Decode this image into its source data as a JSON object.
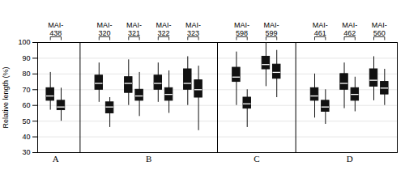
{
  "chart_data": {
    "type": "box",
    "ylabel": "Relative length (%)",
    "ylim": [
      30,
      100
    ],
    "yticks": [
      30,
      40,
      50,
      60,
      70,
      80,
      90,
      100
    ],
    "grid": true,
    "color": "#111111",
    "categories": [
      "MAI-\n438",
      "MAI-\n320",
      "MAI-\n321",
      "MAI-\n322",
      "MAI-\n323",
      "MAI-\n598",
      "MAI-\n599",
      "MAI-\n461",
      "MAI-\n462",
      "MAI-\n560"
    ],
    "category_groups": [
      "A",
      "B",
      "B",
      "B",
      "B",
      "C",
      "C",
      "D",
      "D",
      "D"
    ],
    "series": [
      {
        "mean": [
          66,
          74,
          74,
          74,
          74,
          78,
          86,
          66,
          74,
          76
        ],
        "std_low": [
          63,
          70,
          68,
          70,
          70,
          75,
          83,
          63,
          70,
          72
        ],
        "std_high": [
          71,
          79,
          78,
          79,
          83,
          84,
          91,
          71,
          80,
          83
        ],
        "min": [
          57,
          62,
          60,
          62,
          60,
          60,
          72,
          52,
          58,
          63
        ],
        "max": [
          81,
          87,
          89,
          87,
          91,
          94,
          100,
          80,
          87,
          91
        ]
      },
      {
        "mean": [
          59,
          59,
          66,
          67,
          70,
          61,
          81,
          59,
          67,
          71
        ],
        "std_low": [
          57,
          55,
          63,
          63,
          65,
          58,
          77,
          56,
          63,
          67
        ],
        "std_high": [
          63,
          62,
          70,
          71,
          76,
          65,
          86,
          63,
          71,
          75
        ],
        "min": [
          50,
          46,
          53,
          55,
          44,
          46,
          65,
          48,
          56,
          60
        ],
        "max": [
          71,
          65,
          81,
          82,
          85,
          70,
          95,
          70,
          78,
          83
        ]
      }
    ]
  }
}
